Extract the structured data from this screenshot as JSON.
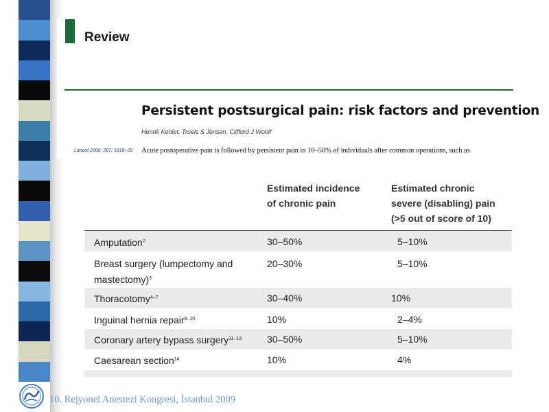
{
  "paper": {
    "section": "Review",
    "title": "Persistent postsurgical pain: risk factors and prevention",
    "authors": "Henrik Kehlet, Troels S Jensen, Clifford J Woolf",
    "citation": "Lancet 2006; 367: 1618–25",
    "abstract_line": "Acute postoperative pain is followed by persistent pain in 10–50% of individuals after common operations, such as"
  },
  "table": {
    "headers": {
      "incidence": [
        "Estimated incidence",
        "of chronic pain"
      ],
      "severe": [
        "Estimated chronic",
        "severe (disabling) pain",
        "(>5 out of score of 10)"
      ]
    },
    "rows": [
      {
        "procedure": [
          "Amputation"
        ],
        "ref": "2",
        "incidence": "30–50%",
        "severe": "5–10%"
      },
      {
        "procedure": [
          "Breast surgery (lumpectomy and",
          "mastectomy)"
        ],
        "ref": "3",
        "incidence": "20–30%",
        "severe": "5–10%"
      },
      {
        "procedure": [
          "Thoracotomy"
        ],
        "ref": "4–7",
        "incidence": "30–40%",
        "severe": "10%"
      },
      {
        "procedure": [
          "Inguinal hernia repair"
        ],
        "ref": "8–10",
        "incidence": "10%",
        "severe": "2–4%"
      },
      {
        "procedure": [
          "Coronary artery bypass surgery"
        ],
        "ref": "11–13",
        "incidence": "30–50%",
        "severe": "5–10%"
      },
      {
        "procedure": [
          "Caesarean section"
        ],
        "ref": "14",
        "incidence": "10%",
        "severe": "4%"
      }
    ]
  },
  "footer": {
    "text": "10. Rejyonel Anestezi Kongresi, İstanbul 2009",
    "logo_icon": "congress-logo-icon"
  },
  "colors": {
    "accent_green": "#1e6b3a",
    "row_shade": "#ebebeb",
    "footer_text": "#6d96c9",
    "strip_blocks": [
      "#2a4f8f",
      "#4c8fd0",
      "#0b2a5a",
      "#3a72c4",
      "#0a0a0a",
      "#d9dcc0",
      "#3b7fa8",
      "#0e2f5c",
      "#7fb0de",
      "#0a0a0a",
      "#2f5fae",
      "#e6e4c8",
      "#5d92c4",
      "#0b0b0b",
      "#86b6e0",
      "#2a6aa8",
      "#0e2552",
      "#d7d7bd",
      "#4b86c7"
    ]
  }
}
